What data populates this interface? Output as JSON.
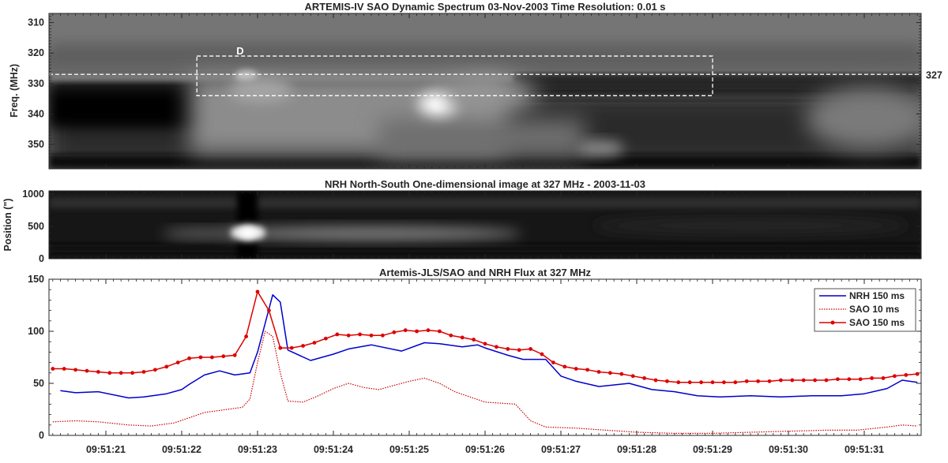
{
  "chart_data": [
    {
      "type": "heatmap",
      "title": "ARTEMIS-IV  SAO Dynamic Spectrum 03-Nov-2003 Time Resolution: 0.01 s",
      "ylabel": "Freq. (MHz)",
      "ylim": [
        307,
        358
      ],
      "y_inverted": true,
      "yticks": [
        310,
        320,
        330,
        340,
        350
      ],
      "annotations": {
        "box_label": "D",
        "box_t_range": [
          9.51222,
          9.5129
        ],
        "box_f_range": [
          321,
          334
        ],
        "hline_freq": 327,
        "hline_label": "327"
      },
      "bright_features": [
        {
          "t": 9.51255,
          "f": 336,
          "intensity": 1.0
        },
        {
          "t": 9.51231,
          "f": 327,
          "intensity": 0.6
        }
      ]
    },
    {
      "type": "heatmap",
      "title": "NRH North-South One-dimensional image at 327 MHz  -  2003-11-03",
      "ylabel": "Position (\")",
      "ylim": [
        0,
        1050
      ],
      "yticks": [
        0,
        500,
        1000
      ],
      "bright_features": [
        {
          "t": 9.5123,
          "pos": 430,
          "intensity": 1.0
        }
      ]
    },
    {
      "type": "line",
      "title": "Artemis-JLS/SAO and NRH Flux at 327 MHz",
      "ylim": [
        0,
        150
      ],
      "yticks": [
        0,
        50,
        100,
        150
      ],
      "xlim": [
        20.25,
        31.75
      ],
      "xtick_values": [
        21,
        22,
        23,
        24,
        25,
        26,
        27,
        28,
        29,
        30,
        31
      ],
      "xtick_labels": [
        "09:51:21",
        "09:51:22",
        "09:51:23",
        "09:51:24",
        "09:51:25",
        "09:51:26",
        "09:51:27",
        "09:51:28",
        "09:51:29",
        "09:51:30",
        "09:51:31"
      ],
      "legend_position": "top-right",
      "series": [
        {
          "name": "NRH 150 ms",
          "color": "#0000cc",
          "style": "solid",
          "x": [
            20.4,
            20.6,
            20.9,
            21.3,
            21.5,
            21.8,
            22.0,
            22.1,
            22.3,
            22.5,
            22.7,
            22.9,
            23.0,
            23.2,
            23.3,
            23.4,
            23.7,
            24.0,
            24.2,
            24.5,
            24.9,
            25.2,
            25.4,
            25.7,
            25.9,
            26.0,
            26.3,
            26.5,
            26.8,
            27.0,
            27.2,
            27.5,
            27.9,
            28.2,
            28.5,
            28.8,
            29.1,
            29.5,
            29.9,
            30.3,
            30.7,
            31.0,
            31.3,
            31.5,
            31.7
          ],
          "values": [
            43,
            41,
            42,
            36,
            37,
            40,
            44,
            49,
            58,
            62,
            58,
            60,
            80,
            135,
            128,
            82,
            72,
            78,
            83,
            87,
            81,
            89,
            88,
            85,
            87,
            84,
            77,
            73,
            73,
            57,
            52,
            47,
            50,
            44,
            42,
            38,
            37,
            38,
            37,
            38,
            38,
            40,
            45,
            53,
            51
          ]
        },
        {
          "name": "SAO 10 ms",
          "color": "#cc0000",
          "style": "dotted",
          "x": [
            20.3,
            20.6,
            20.9,
            21.3,
            21.6,
            21.9,
            22.1,
            22.3,
            22.6,
            22.8,
            22.9,
            23.0,
            23.1,
            23.2,
            23.3,
            23.4,
            23.6,
            23.8,
            24.0,
            24.2,
            24.4,
            24.6,
            24.8,
            25.0,
            25.2,
            25.4,
            25.6,
            25.8,
            26.0,
            26.2,
            26.4,
            26.6,
            26.8,
            27.2,
            27.6,
            28.0,
            28.5,
            29.0,
            29.5,
            30.0,
            30.5,
            30.9,
            31.3,
            31.5,
            31.7
          ],
          "values": [
            13,
            14,
            13,
            10,
            9,
            12,
            17,
            22,
            25,
            27,
            35,
            70,
            100,
            95,
            60,
            33,
            32,
            38,
            45,
            50,
            46,
            44,
            48,
            52,
            55,
            50,
            42,
            37,
            32,
            31,
            30,
            14,
            8,
            7,
            5,
            3,
            2,
            2,
            3,
            4,
            5,
            5,
            8,
            10,
            9
          ]
        },
        {
          "name": "SAO 150 ms",
          "color": "#dd0000",
          "style": "solid-marker",
          "x": [
            20.3,
            20.45,
            20.6,
            20.75,
            20.9,
            21.05,
            21.2,
            21.35,
            21.5,
            21.65,
            21.8,
            21.95,
            22.1,
            22.25,
            22.4,
            22.55,
            22.7,
            22.85,
            23.0,
            23.15,
            23.3,
            23.45,
            23.6,
            23.75,
            23.9,
            24.05,
            24.2,
            24.35,
            24.5,
            24.65,
            24.8,
            24.95,
            25.1,
            25.25,
            25.4,
            25.55,
            25.7,
            25.85,
            26.0,
            26.15,
            26.3,
            26.45,
            26.6,
            26.75,
            26.9,
            27.05,
            27.2,
            27.35,
            27.5,
            27.65,
            27.8,
            27.95,
            28.1,
            28.25,
            28.4,
            28.55,
            28.7,
            28.85,
            29.0,
            29.15,
            29.3,
            29.45,
            29.6,
            29.75,
            29.9,
            30.05,
            30.2,
            30.35,
            30.5,
            30.65,
            30.8,
            30.95,
            31.1,
            31.25,
            31.4,
            31.55,
            31.7
          ],
          "values": [
            64,
            64,
            63,
            62,
            61,
            60,
            60,
            60,
            61,
            63,
            66,
            70,
            74,
            75,
            75,
            76,
            77,
            95,
            138,
            120,
            84,
            84,
            86,
            89,
            93,
            97,
            96,
            97,
            96,
            96,
            99,
            101,
            100,
            101,
            100,
            96,
            94,
            92,
            88,
            85,
            83,
            82,
            83,
            78,
            70,
            66,
            64,
            63,
            61,
            60,
            59,
            57,
            55,
            53,
            52,
            51,
            51,
            51,
            51,
            51,
            51,
            52,
            52,
            52,
            53,
            53,
            53,
            53,
            53,
            54,
            54,
            54,
            55,
            55,
            57,
            58,
            59
          ]
        }
      ]
    }
  ]
}
